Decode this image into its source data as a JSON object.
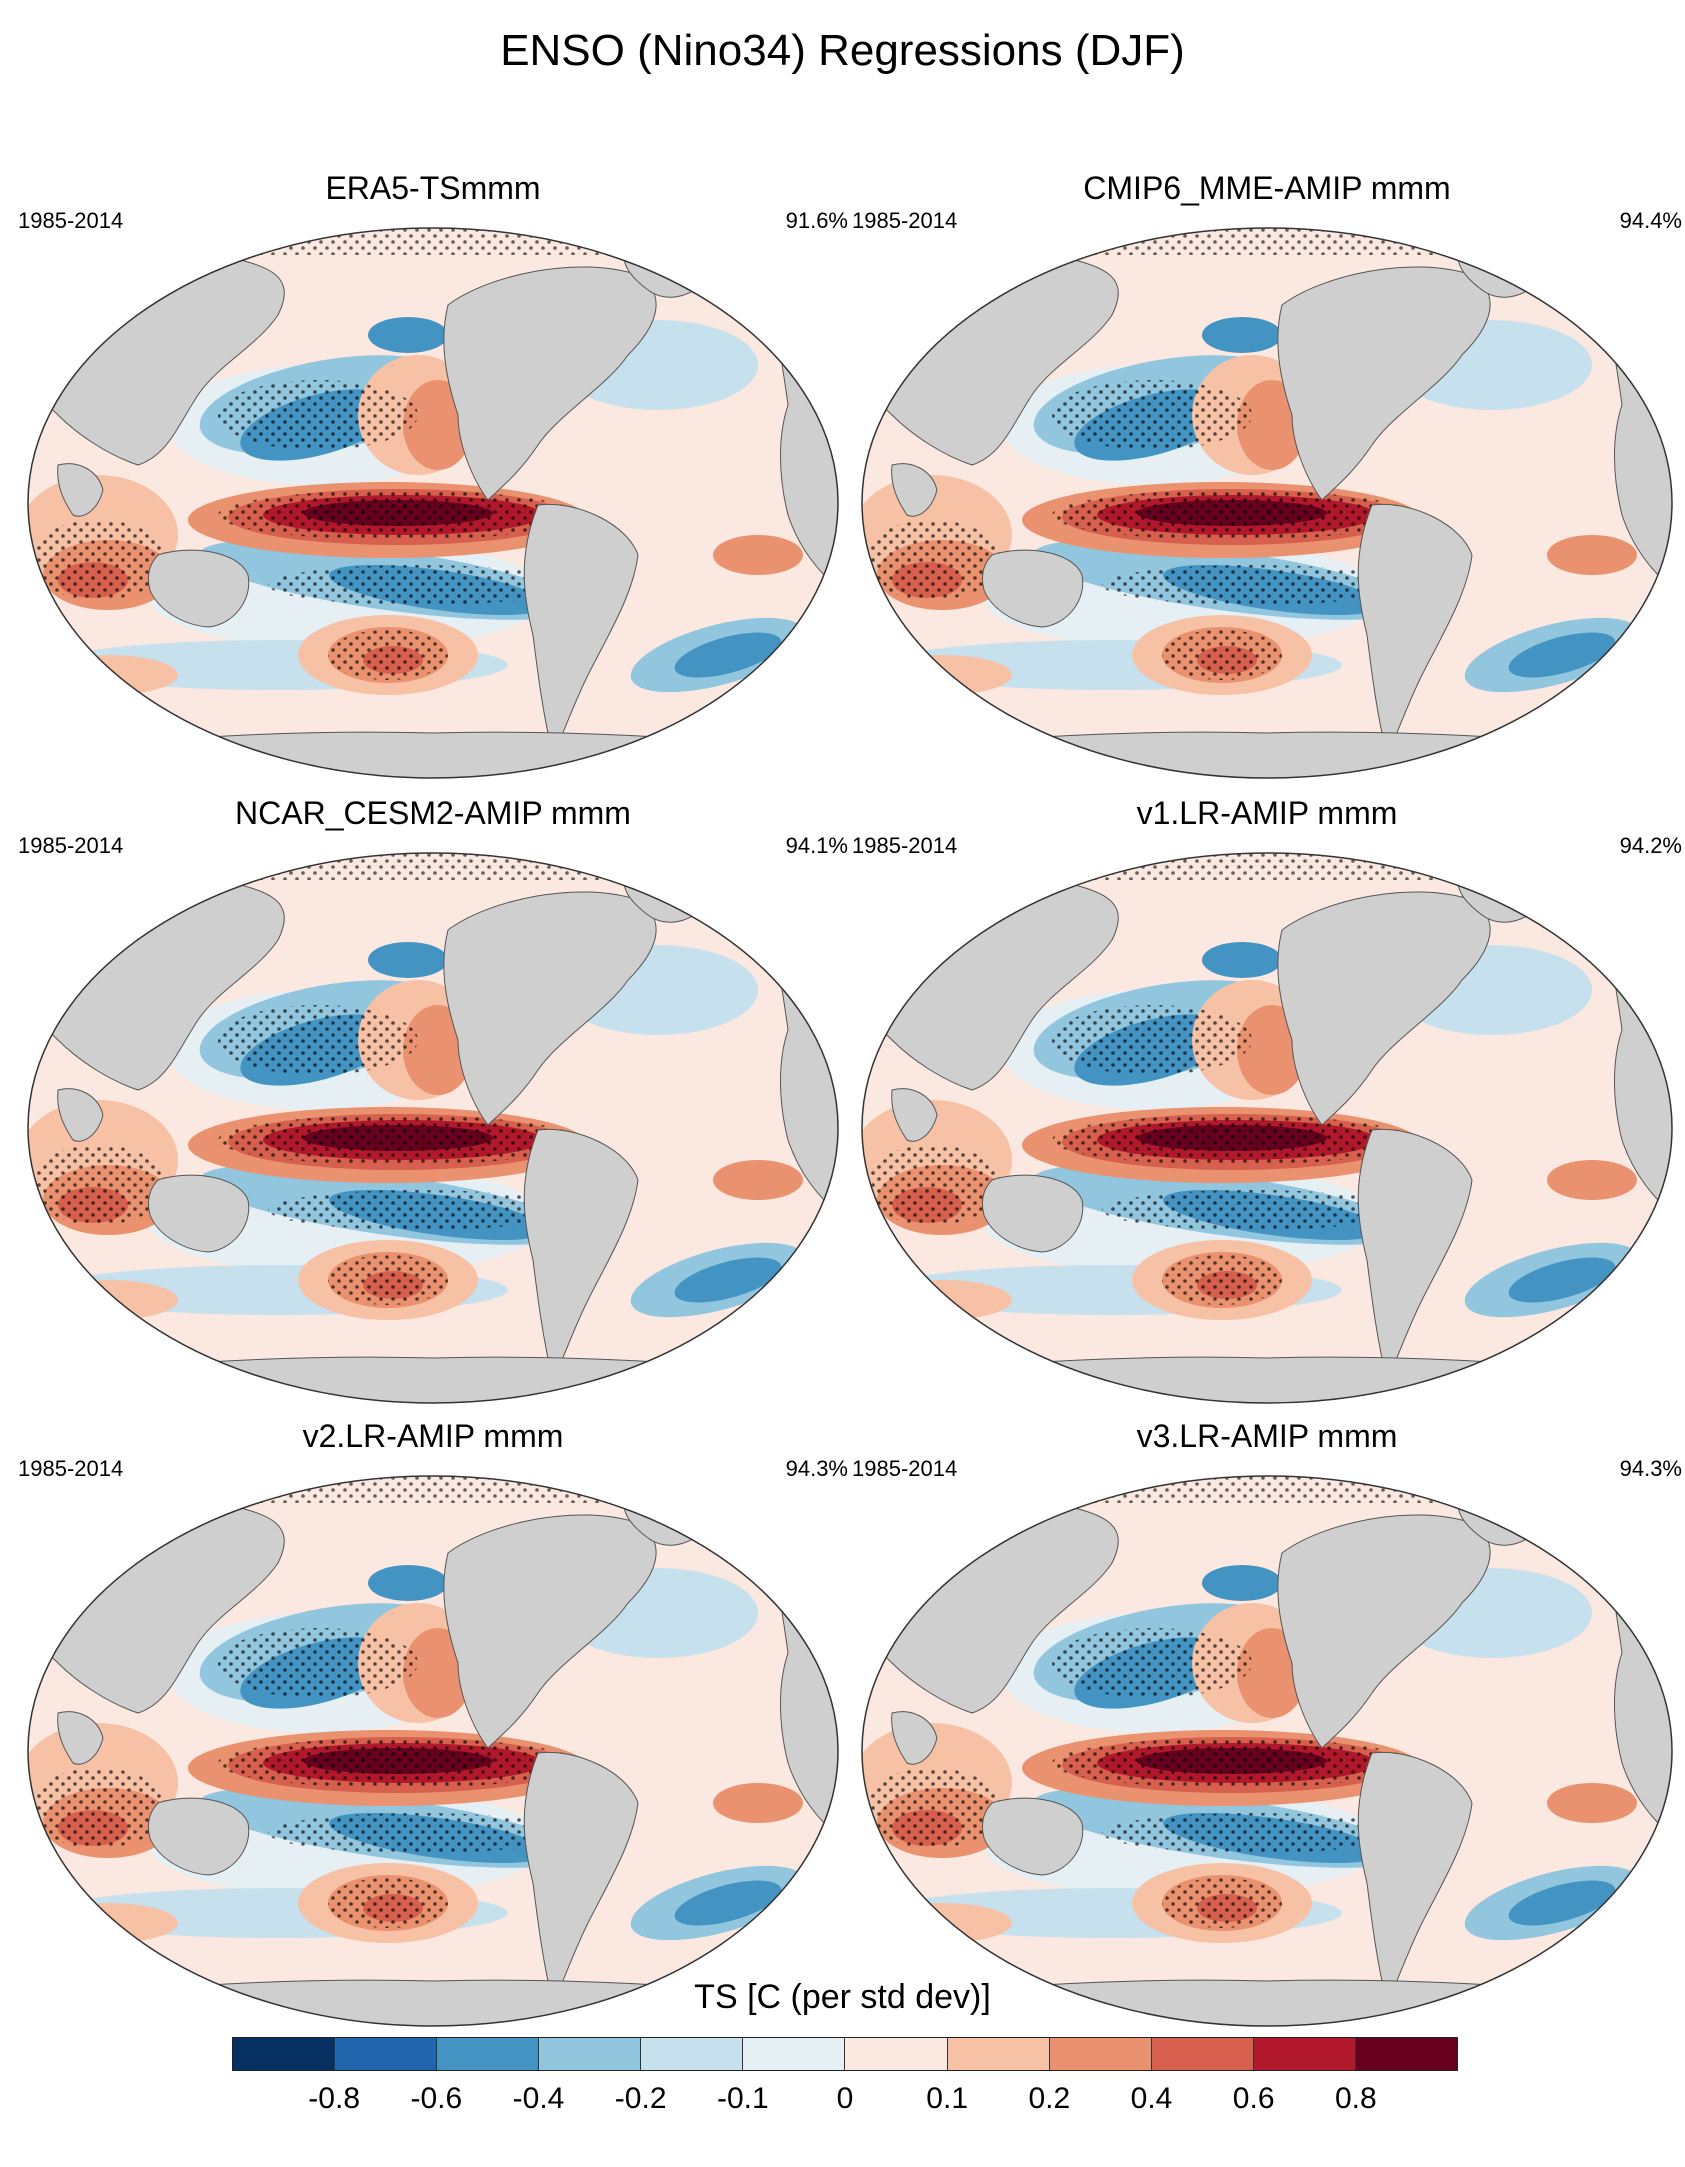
{
  "title": "ENSO (Nino34) Regressions (DJF)",
  "panels": [
    {
      "title": "ERA5-TSmmm",
      "period": "1985-2014",
      "pct": "91.6%"
    },
    {
      "title": "CMIP6_MME-AMIP  mmm",
      "period": "1985-2014",
      "pct": "94.4%"
    },
    {
      "title": "NCAR_CESM2-AMIP  mmm",
      "period": "1985-2014",
      "pct": "94.1%"
    },
    {
      "title": "v1.LR-AMIP  mmm",
      "period": "1985-2014",
      "pct": "94.2%"
    },
    {
      "title": "v2.LR-AMIP  mmm",
      "period": "1985-2014",
      "pct": "94.3%"
    },
    {
      "title": "v3.LR-AMIP  mmm",
      "period": "1985-2014",
      "pct": "94.3%"
    }
  ],
  "colorbar": {
    "title": "TS [C (per std dev)]",
    "colors": [
      "#053061",
      "#2166ac",
      "#4393c3",
      "#92c5de",
      "#c7e0ee",
      "#e6eff4",
      "#fbe8e0",
      "#f7c1a6",
      "#ea9270",
      "#d6604d",
      "#b2182b",
      "#67001f"
    ],
    "ticks": [
      "-0.8",
      "-0.6",
      "-0.4",
      "-0.2",
      "-0.1",
      "0",
      "0.1",
      "0.2",
      "0.4",
      "0.6",
      "0.8"
    ]
  }
}
